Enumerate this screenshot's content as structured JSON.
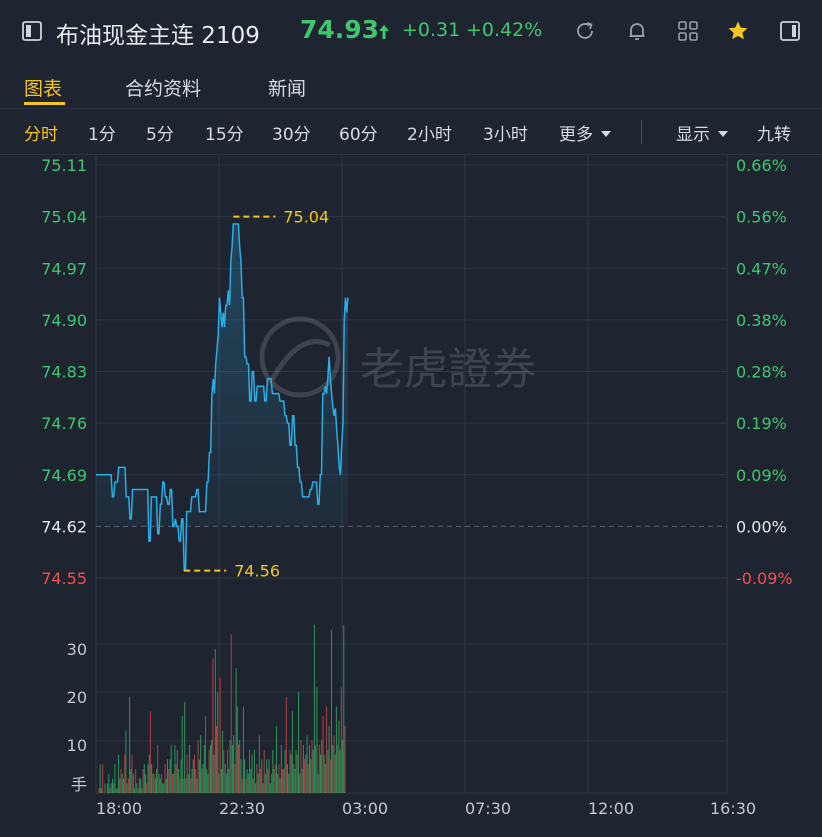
{
  "header": {
    "title": "布油现金主连 2109",
    "price": "74.93",
    "change": "+0.31",
    "change_pct": "+0.42%",
    "icons": [
      "sidebar-toggle-icon",
      "refresh-icon",
      "bell-icon",
      "grid-icon",
      "star-icon",
      "panel-icon"
    ],
    "up_color": "#3fc66e",
    "down_color": "#f0504d",
    "accent": "#f4c51b"
  },
  "tabs": [
    {
      "label": "图表",
      "active": true
    },
    {
      "label": "合约资料",
      "active": false
    },
    {
      "label": "新闻",
      "active": false
    }
  ],
  "periods": {
    "items": [
      "分时",
      "1分",
      "5分",
      "15分",
      "30分",
      "60分",
      "2小时",
      "3小时"
    ],
    "active": "分时",
    "more_label": "更多",
    "display_label": "显示",
    "nine_label": "九转"
  },
  "watermark": "老虎證券",
  "chart_data": [
    {
      "type": "line",
      "y_left_ticks": [
        "75.11",
        "75.04",
        "74.97",
        "74.90",
        "74.83",
        "74.76",
        "74.69",
        "74.62",
        "74.55"
      ],
      "y_right_ticks": [
        "0.66%",
        "0.56%",
        "0.47%",
        "0.38%",
        "0.28%",
        "0.19%",
        "0.09%",
        "0.00%",
        "-0.09%"
      ],
      "ylim": [
        74.55,
        75.11
      ],
      "prev_close": 74.62,
      "high_label": "75.04",
      "low_label": "74.56",
      "x_ticks": [
        "18:00",
        "22:30",
        "03:00",
        "07:30",
        "12:00",
        "16:30"
      ],
      "series": [
        {
          "values": [
            74.69,
            74.69,
            74.69,
            74.69,
            74.69,
            74.69,
            74.69,
            74.69,
            74.69,
            74.69,
            74.69,
            74.69,
            74.69,
            74.66,
            74.66,
            74.68,
            74.68,
            74.68,
            74.7,
            74.7,
            74.7,
            74.7,
            74.7,
            74.7,
            74.66,
            74.66,
            74.66,
            74.63,
            74.63,
            74.67,
            74.67,
            74.67,
            74.67,
            74.67,
            74.67,
            74.67,
            74.67,
            74.67,
            74.67,
            74.67,
            74.67,
            74.67,
            74.6,
            74.6,
            74.66,
            74.66,
            74.66,
            74.66,
            74.66,
            74.61,
            74.61,
            74.65,
            74.65,
            74.68,
            74.68,
            74.66,
            74.66,
            74.65,
            74.65,
            74.67,
            74.67,
            74.62,
            74.62,
            74.63,
            74.62,
            74.62,
            74.6,
            74.6,
            74.63,
            74.63,
            74.56,
            74.56,
            74.64,
            74.64,
            74.64,
            74.64,
            74.66,
            74.66,
            74.66,
            74.66,
            74.67,
            74.67,
            74.64,
            74.64,
            74.64,
            74.64,
            74.64,
            74.64,
            74.68,
            74.68,
            74.72,
            74.72,
            74.8,
            74.82,
            74.8,
            74.84,
            74.86,
            74.88,
            74.93,
            74.91,
            74.89,
            74.91,
            74.89,
            74.92,
            74.92,
            74.94,
            74.92,
            74.98,
            75.0,
            75.03,
            75.03,
            75.03,
            75.03,
            75.03,
            75.0,
            74.98,
            74.93,
            74.93,
            74.85,
            74.85,
            74.84,
            74.84,
            74.79,
            74.79,
            74.83,
            74.83,
            74.79,
            74.79,
            74.81,
            74.81,
            74.81,
            74.81,
            74.81,
            74.81,
            74.79,
            74.79,
            74.82,
            74.82,
            74.82,
            74.82,
            74.8,
            74.8,
            74.8,
            74.8,
            74.8,
            74.8,
            74.79,
            74.79,
            74.79,
            74.79,
            74.77,
            74.77,
            74.76,
            74.76,
            74.73,
            74.73,
            74.77,
            74.77,
            74.73,
            74.73,
            74.7,
            74.7,
            74.68,
            74.68,
            74.66,
            74.66,
            74.66,
            74.66,
            74.66,
            74.66,
            74.67,
            74.67,
            74.68,
            74.68,
            74.68,
            74.68,
            74.65,
            74.65,
            74.69,
            74.69,
            74.8,
            74.8,
            74.81,
            74.8,
            74.82,
            74.85,
            74.82,
            74.8,
            74.78,
            74.77,
            74.78,
            74.75,
            74.73,
            74.7,
            74.69,
            74.73,
            74.76,
            74.9,
            74.93,
            74.91,
            74.93
          ]
        }
      ]
    },
    {
      "type": "bar",
      "y_ticks": [
        "30",
        "20",
        "10"
      ],
      "ylabel": "手",
      "ylim": [
        0,
        36
      ],
      "values": [
        1,
        6,
        1,
        6,
        0,
        2,
        0,
        2,
        4,
        1,
        2,
        3,
        2,
        6,
        1,
        1,
        8,
        3,
        5,
        4,
        3,
        8,
        13,
        2,
        3,
        20,
        5,
        8,
        4,
        1,
        5,
        2,
        1,
        3,
        3,
        1,
        5,
        6,
        4,
        2,
        6,
        8,
        17,
        6,
        4,
        4,
        3,
        5,
        10,
        4,
        3,
        4,
        2,
        2,
        6,
        3,
        7,
        5,
        7,
        10,
        4,
        4,
        10,
        6,
        9,
        5,
        3,
        7,
        16,
        3,
        19,
        3,
        8,
        4,
        10,
        3,
        5,
        7,
        8,
        5,
        3,
        11,
        7,
        12,
        5,
        6,
        10,
        16,
        5,
        4,
        9,
        10,
        11,
        28,
        8,
        30,
        14,
        21,
        4,
        24,
        5,
        13,
        9,
        6,
        4,
        9,
        5,
        11,
        33,
        10,
        12,
        6,
        26,
        18,
        10,
        11,
        7,
        3,
        18,
        7,
        3,
        5,
        4,
        9,
        5,
        8,
        3,
        9,
        2,
        6,
        4,
        12,
        5,
        7,
        2,
        9,
        4,
        7,
        5,
        7,
        2,
        4,
        9,
        5,
        6,
        14,
        4,
        6,
        3,
        10,
        5,
        5,
        9,
        20,
        6,
        4,
        9,
        8,
        17,
        6,
        5,
        9,
        8,
        21,
        4,
        11,
        5,
        10,
        7,
        8,
        12,
        6,
        10,
        7,
        11,
        9,
        35,
        10,
        22,
        4,
        10,
        8,
        11,
        16,
        8,
        6,
        18,
        9,
        14,
        7,
        34,
        10,
        12,
        8,
        18,
        10,
        15,
        9,
        22,
        11,
        35,
        14
      ],
      "up_down": "gr"
    }
  ]
}
